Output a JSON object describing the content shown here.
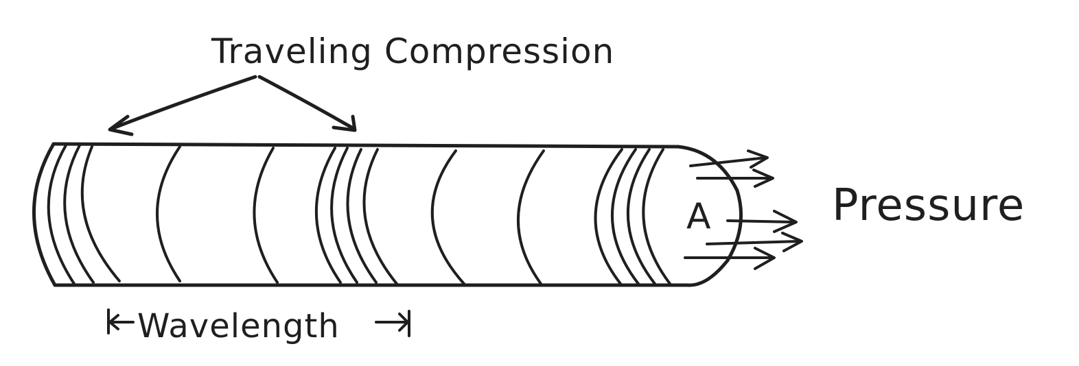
{
  "labels": {
    "top": "Traveling Compression",
    "right": "Pressure",
    "bottom": "Wavelength",
    "end": "A"
  },
  "colors": {
    "ink": "#1f1f1f",
    "paper": "#ffffff"
  }
}
